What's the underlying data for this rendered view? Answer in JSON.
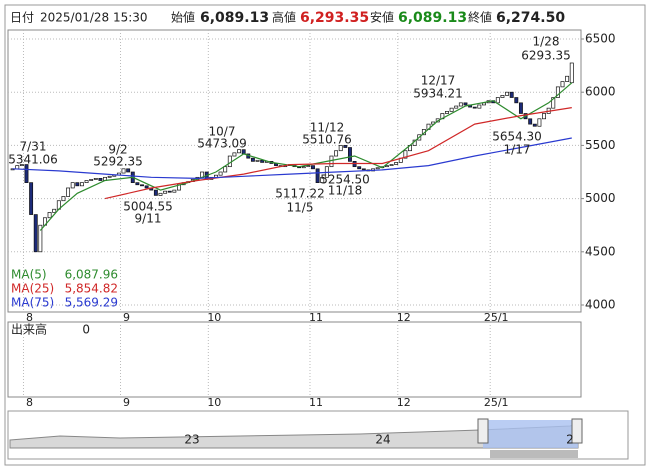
{
  "header": {
    "date_label": "日付",
    "datetime": "2025/01/28 15:30",
    "open_label": "始値",
    "open": "6,089.13",
    "high_label": "高値",
    "high": "6,293.35",
    "low_label": "安値",
    "low": "6,089.13",
    "close_label": "終値",
    "close": "6,274.50"
  },
  "chart_data": {
    "type": "candlestick",
    "categories": [
      null,
      null,
      null,
      "8",
      null,
      null,
      null,
      null,
      null,
      null,
      null,
      null,
      null,
      null,
      null,
      null,
      null,
      null,
      null,
      null,
      null,
      null,
      null,
      null,
      "9",
      null,
      null,
      null,
      null,
      null,
      null,
      null,
      null,
      null,
      null,
      null,
      null,
      null,
      null,
      null,
      null,
      null,
      null,
      "10",
      null,
      null,
      null,
      null,
      null,
      null,
      null,
      null,
      null,
      null,
      null,
      null,
      null,
      null,
      null,
      null,
      null,
      null,
      null,
      null,
      null,
      "11",
      null,
      null,
      null,
      null,
      null,
      null,
      null,
      null,
      null,
      null,
      null,
      null,
      null,
      null,
      null,
      null,
      null,
      null,
      "12",
      null,
      null,
      null,
      null,
      null,
      null,
      null,
      null,
      null,
      null,
      null,
      null,
      null,
      null,
      null,
      null,
      null,
      null,
      null,
      "25/1",
      null,
      null,
      null,
      null,
      null,
      null,
      null,
      null,
      null,
      null,
      null,
      null,
      null,
      null,
      null,
      null,
      null
    ],
    "open": [
      5270,
      5280,
      5310,
      5320,
      5150,
      4850,
      4500,
      4750,
      4820,
      4870,
      4900,
      4980,
      5020,
      5100,
      5150,
      5120,
      5150,
      5170,
      5180,
      5190,
      5170,
      5200,
      5210,
      5220,
      5240,
      5280,
      5250,
      5150,
      5130,
      5120,
      5100,
      5080,
      5030,
      5050,
      5070,
      5060,
      5080,
      5130,
      5150,
      5160,
      5180,
      5200,
      5250,
      5180,
      5200,
      5220,
      5250,
      5300,
      5400,
      5430,
      5460,
      5420,
      5380,
      5350,
      5360,
      5340,
      5350,
      5330,
      5310,
      5300,
      5310,
      5320,
      5300,
      5290,
      5300,
      5310,
      5280,
      5150,
      5200,
      5300,
      5400,
      5450,
      5500,
      5480,
      5350,
      5300,
      5280,
      5270,
      5260,
      5280,
      5290,
      5300,
      5310,
      5320,
      5340,
      5380,
      5450,
      5500,
      5550,
      5600,
      5650,
      5700,
      5720,
      5750,
      5800,
      5820,
      5850,
      5870,
      5900,
      5880,
      5860,
      5850,
      5880,
      5900,
      5920,
      5900,
      5950,
      5970,
      6000,
      5950,
      5900,
      5800,
      5750,
      5700,
      5680,
      5750,
      5800,
      5850,
      5950,
      6050,
      6100,
      6089.13
    ],
    "close": [
      5280,
      5310,
      5320,
      5150,
      4850,
      4500,
      4750,
      4820,
      4870,
      4900,
      4980,
      5020,
      5100,
      5150,
      5120,
      5150,
      5170,
      5180,
      5190,
      5170,
      5200,
      5210,
      5220,
      5240,
      5280,
      5250,
      5150,
      5130,
      5120,
      5100,
      5080,
      5030,
      5050,
      5070,
      5060,
      5080,
      5130,
      5150,
      5160,
      5180,
      5200,
      5250,
      5180,
      5200,
      5220,
      5250,
      5300,
      5400,
      5430,
      5460,
      5420,
      5380,
      5350,
      5360,
      5340,
      5350,
      5330,
      5310,
      5300,
      5310,
      5320,
      5300,
      5290,
      5300,
      5310,
      5280,
      5150,
      5200,
      5300,
      5400,
      5450,
      5500,
      5480,
      5350,
      5300,
      5280,
      5270,
      5260,
      5280,
      5290,
      5300,
      5310,
      5320,
      5340,
      5380,
      5450,
      5500,
      5550,
      5600,
      5650,
      5700,
      5720,
      5750,
      5800,
      5820,
      5850,
      5870,
      5900,
      5880,
      5860,
      5850,
      5880,
      5900,
      5920,
      5900,
      5950,
      5970,
      6000,
      5950,
      5900,
      5800,
      5750,
      5700,
      5680,
      5750,
      5800,
      5850,
      5950,
      6050,
      6100,
      6150,
      6274.5
    ],
    "up_color": "#ffffff",
    "down_color": "#1c2a78",
    "series": [
      {
        "name": "MA(5)",
        "color": "#2e8b2e",
        "last_label": "6,087.96",
        "x": [
          6,
          10,
          14,
          20,
          26,
          32,
          38,
          44,
          50,
          56,
          62,
          68,
          74,
          80,
          86,
          92,
          98,
          104,
          110,
          116,
          121
        ],
        "values": [
          4700,
          4900,
          5050,
          5170,
          5200,
          5080,
          5150,
          5250,
          5420,
          5340,
          5300,
          5350,
          5400,
          5290,
          5500,
          5730,
          5870,
          5920,
          5750,
          5900,
          6087.96
        ]
      },
      {
        "name": "MA(25)",
        "color": "#d02828",
        "last_label": "5,854.82",
        "x": [
          20,
          30,
          40,
          50,
          60,
          70,
          80,
          90,
          100,
          110,
          121
        ],
        "values": [
          5000,
          5100,
          5170,
          5230,
          5320,
          5330,
          5330,
          5450,
          5700,
          5780,
          5854.82
        ]
      },
      {
        "name": "MA(75)",
        "color": "#2a3ad0",
        "last_label": "5,569.29",
        "x": [
          0,
          10,
          20,
          30,
          40,
          50,
          60,
          70,
          80,
          90,
          100,
          110,
          121
        ],
        "values": [
          5280,
          5260,
          5230,
          5200,
          5190,
          5210,
          5230,
          5250,
          5270,
          5310,
          5400,
          5480,
          5569.29
        ]
      }
    ],
    "annotations": [
      {
        "date": "7/31",
        "value": 5341.06
      },
      {
        "date": "9/2",
        "value": 5292.35
      },
      {
        "date": "9/11",
        "value": 5004.55
      },
      {
        "date": "10/7",
        "value": 5473.09
      },
      {
        "date": "11/5",
        "value": 5117.22
      },
      {
        "date": "11/12",
        "value": 5510.76
      },
      {
        "date": "11/18",
        "value": 5254.5,
        "value_label": "5254.50"
      },
      {
        "date": "12/17",
        "value": 5934.21
      },
      {
        "date": "1/17",
        "value": 5654.3,
        "value_label": "5654.30"
      },
      {
        "date": "1/28",
        "value": 6293.35
      }
    ],
    "xlim": [
      -1,
      123
    ],
    "ylim": [
      4000,
      6500
    ],
    "yticks": [
      4000,
      4500,
      5000,
      5500,
      6000,
      6500
    ],
    "grid": true,
    "volume_label": "出来高",
    "volume": 0
  },
  "navigator": {
    "labels": [
      "23",
      "24",
      "2"
    ]
  }
}
